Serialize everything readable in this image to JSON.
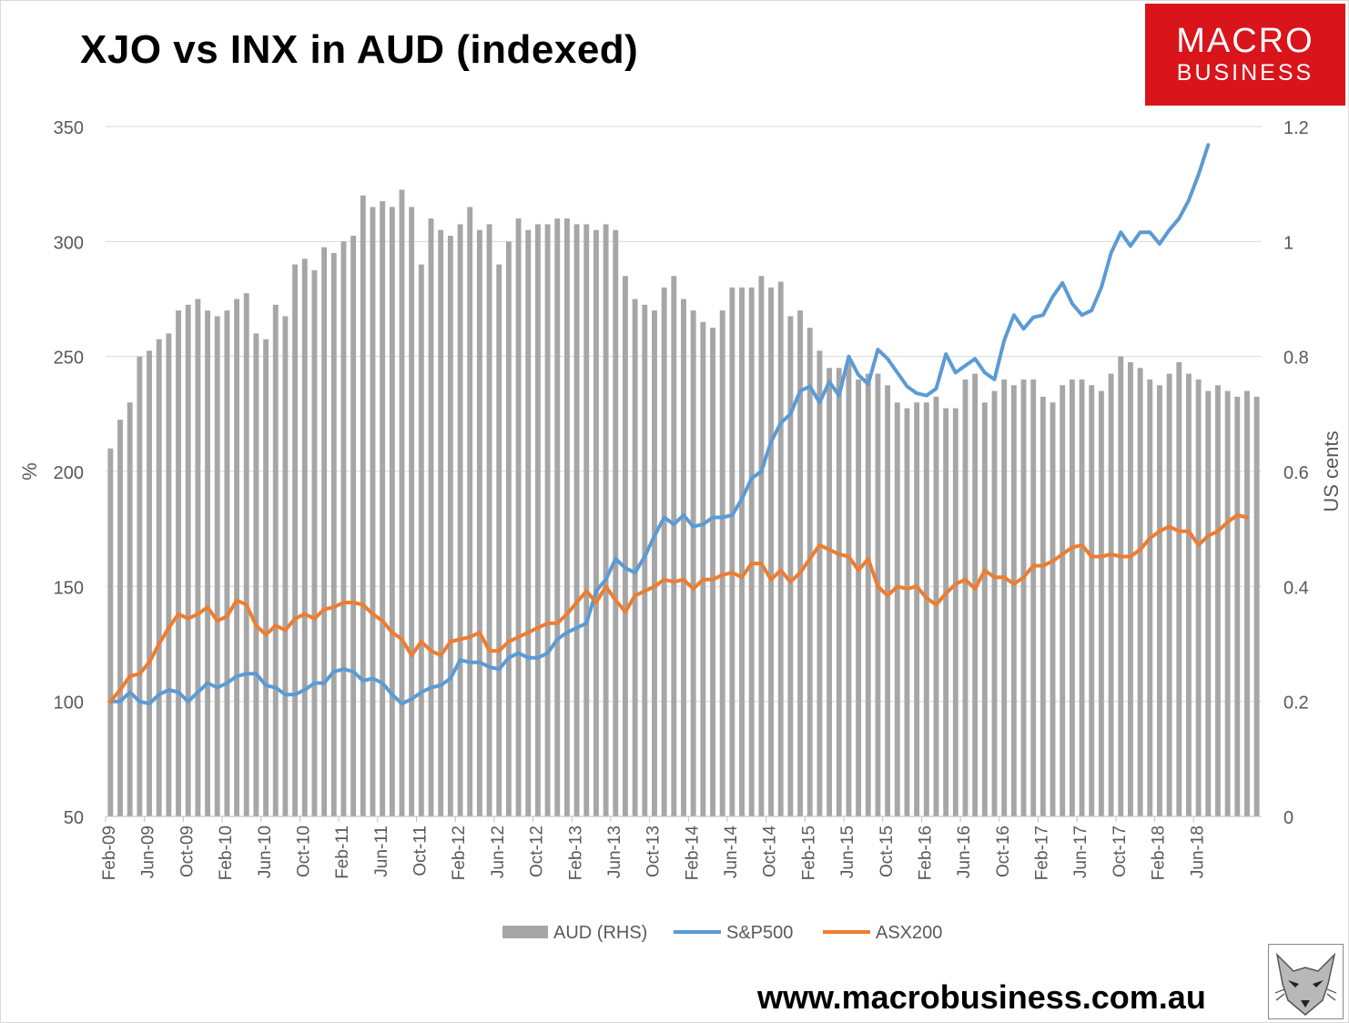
{
  "title": "XJO vs INX in AUD (indexed)",
  "logo": {
    "line1": "MACRO",
    "line2": "BUSINESS"
  },
  "website": "www.macrobusiness.com.au",
  "colors": {
    "aud_bar": "#a6a6a6",
    "sp500": "#5b9bd5",
    "asx200": "#ed7d31",
    "grid": "#d9d9d9",
    "axis_text": "#595959",
    "logo_bg": "#d9141b"
  },
  "chart_data": {
    "type": "bar+line",
    "ylabel": "%",
    "y2label": "US cents",
    "ylim": [
      50,
      350
    ],
    "yticks": [
      50,
      100,
      150,
      200,
      250,
      300,
      350
    ],
    "y2lim": [
      0,
      1.2
    ],
    "y2ticks": [
      "0",
      "0.2",
      "0.4",
      "0.6",
      "0.8",
      "1",
      "1.2"
    ],
    "start": "Feb-09",
    "xtick_labels": [
      "Feb-09",
      "Jun-09",
      "Oct-09",
      "Feb-10",
      "Jun-10",
      "Oct-10",
      "Feb-11",
      "Jun-11",
      "Oct-11",
      "Feb-12",
      "Jun-12",
      "Oct-12",
      "Feb-13",
      "Jun-13",
      "Oct-13",
      "Feb-14",
      "Jun-14",
      "Oct-14",
      "Feb-15",
      "Jun-15",
      "Oct-15",
      "Feb-16",
      "Jun-16",
      "Oct-16",
      "Feb-17",
      "Jun-17",
      "Oct-17",
      "Feb-18",
      "Jun-18"
    ],
    "legend": [
      "AUD (RHS)",
      "S&P500",
      "ASX200"
    ],
    "legend_position": "bottom",
    "grid": true,
    "series": [
      {
        "name": "AUD (RHS)",
        "axis": "right",
        "type": "bar",
        "values": [
          0.64,
          0.69,
          0.72,
          0.8,
          0.81,
          0.83,
          0.84,
          0.88,
          0.89,
          0.9,
          0.88,
          0.87,
          0.88,
          0.9,
          0.91,
          0.84,
          0.83,
          0.89,
          0.87,
          0.96,
          0.97,
          0.95,
          0.99,
          0.98,
          1.0,
          1.01,
          1.08,
          1.06,
          1.07,
          1.06,
          1.09,
          1.06,
          0.96,
          1.04,
          1.02,
          1.01,
          1.03,
          1.06,
          1.02,
          1.03,
          0.96,
          1.0,
          1.04,
          1.02,
          1.03,
          1.03,
          1.04,
          1.04,
          1.03,
          1.03,
          1.02,
          1.03,
          1.02,
          0.94,
          0.9,
          0.89,
          0.88,
          0.92,
          0.94,
          0.9,
          0.88,
          0.86,
          0.85,
          0.88,
          0.92,
          0.92,
          0.92,
          0.94,
          0.92,
          0.93,
          0.87,
          0.88,
          0.85,
          0.81,
          0.78,
          0.78,
          0.79,
          0.76,
          0.77,
          0.77,
          0.75,
          0.72,
          0.71,
          0.72,
          0.72,
          0.73,
          0.71,
          0.71,
          0.76,
          0.77,
          0.72,
          0.74,
          0.76,
          0.75,
          0.76,
          0.76,
          0.73,
          0.72,
          0.75,
          0.76,
          0.76,
          0.75,
          0.74,
          0.77,
          0.8,
          0.79,
          0.78,
          0.76,
          0.75,
          0.77,
          0.79,
          0.77,
          0.76,
          0.74,
          0.75,
          0.74,
          0.73,
          0.74,
          0.73
        ]
      },
      {
        "name": "S&P500",
        "axis": "left",
        "type": "line",
        "values": [
          100,
          100,
          104,
          100,
          99,
          103,
          105,
          104,
          100,
          104,
          108,
          106,
          108,
          111,
          112,
          112,
          107,
          106,
          103,
          103,
          105,
          108,
          108,
          113,
          114,
          113,
          109,
          110,
          108,
          103,
          99,
          101,
          104,
          106,
          107,
          110,
          118,
          117,
          117,
          115,
          114,
          119,
          121,
          119,
          119,
          121,
          127,
          130,
          132,
          134,
          148,
          153,
          162,
          158,
          156,
          163,
          172,
          180,
          177,
          181,
          176,
          177,
          180,
          180,
          181,
          188,
          197,
          200,
          213,
          221,
          225,
          235,
          237,
          230,
          239,
          233,
          250,
          242,
          238,
          253,
          249,
          243,
          237,
          234,
          233,
          236,
          251,
          243,
          246,
          249,
          243,
          240,
          257,
          268,
          262,
          267,
          268,
          276,
          282,
          273,
          268,
          270,
          280,
          295,
          304,
          298,
          304,
          304,
          299,
          305,
          310,
          318,
          329,
          342
        ]
      },
      {
        "name": "ASX200",
        "axis": "left",
        "type": "line",
        "values": [
          100,
          105,
          111,
          112,
          117,
          125,
          132,
          138,
          136,
          138,
          141,
          135,
          137,
          144,
          142,
          133,
          129,
          133,
          131,
          136,
          138,
          136,
          140,
          141,
          143,
          143,
          142,
          138,
          135,
          130,
          127,
          120,
          126,
          122,
          120,
          126,
          127,
          128,
          130,
          122,
          122,
          126,
          128,
          130,
          132,
          134,
          134,
          138,
          143,
          148,
          143,
          150,
          144,
          139,
          146,
          148,
          150,
          153,
          152,
          153,
          149,
          153,
          153,
          155,
          156,
          154,
          160,
          160,
          153,
          157,
          152,
          156,
          162,
          168,
          166,
          164,
          163,
          157,
          162,
          150,
          146,
          150,
          149,
          150,
          145,
          142,
          147,
          151,
          153,
          149,
          157,
          154,
          154,
          151,
          154,
          159,
          159,
          161,
          164,
          167,
          168,
          163,
          163,
          164,
          163,
          163,
          166,
          171,
          174,
          176,
          174,
          174,
          168,
          172,
          174,
          178,
          181,
          180
        ]
      }
    ]
  }
}
